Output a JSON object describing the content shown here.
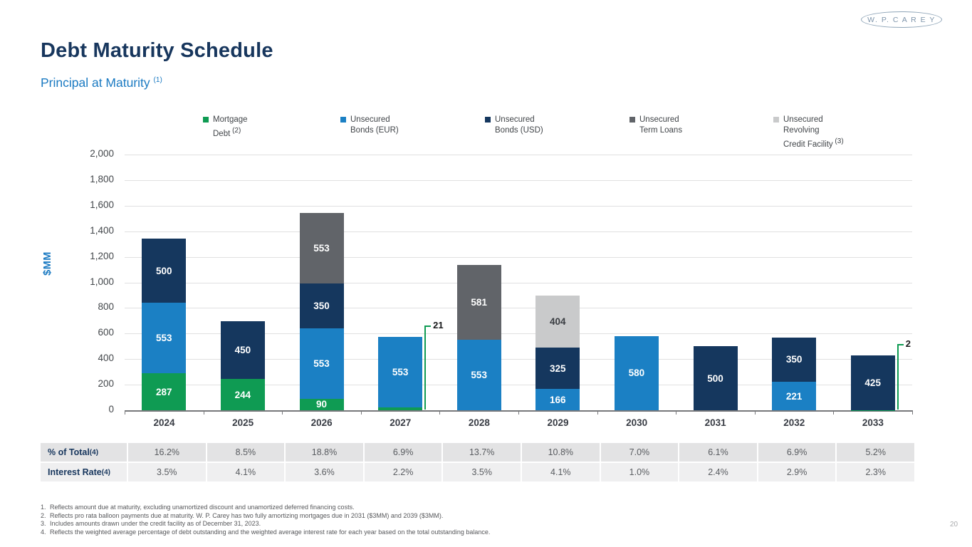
{
  "brand": {
    "logo_text": "W. P. C A R E Y"
  },
  "header": {
    "title": "Debt Maturity Schedule",
    "subtitle": "Principal at Maturity",
    "subtitle_note": "(1)"
  },
  "chart_data": {
    "type": "bar",
    "stacked": true,
    "title": "Principal at Maturity",
    "ylabel": "$MM",
    "ylim": [
      0,
      2000
    ],
    "ytick_interval": 200,
    "grid": true,
    "legend_position": "top",
    "categories": [
      "2024",
      "2025",
      "2026",
      "2027",
      "2028",
      "2029",
      "2030",
      "2031",
      "2032",
      "2033"
    ],
    "series": [
      {
        "key": "mortgage",
        "name": "Mortgage Debt",
        "note": "(2)",
        "legend_lines": [
          "Mortgage",
          "Debt"
        ],
        "color": "#0f9b53",
        "values": [
          287,
          244,
          90,
          21,
          0,
          0,
          0,
          0,
          0,
          2
        ]
      },
      {
        "key": "eur-bonds",
        "name": "Unsecured Bonds (EUR)",
        "note": "",
        "legend_lines": [
          "Unsecured",
          "Bonds (EUR)"
        ],
        "color": "#1b80c4",
        "values": [
          553,
          0,
          553,
          553,
          553,
          166,
          580,
          0,
          221,
          0
        ]
      },
      {
        "key": "usd-bonds",
        "name": "Unsecured Bonds (USD)",
        "note": "",
        "legend_lines": [
          "Unsecured",
          "Bonds (USD)"
        ],
        "color": "#15375e",
        "values": [
          500,
          450,
          350,
          0,
          0,
          325,
          0,
          500,
          350,
          425
        ]
      },
      {
        "key": "term-loans",
        "name": "Unsecured Term Loans",
        "note": "",
        "legend_lines": [
          "Unsecured",
          "Term Loans"
        ],
        "color": "#616469",
        "values": [
          0,
          0,
          553,
          0,
          581,
          0,
          0,
          0,
          0,
          0
        ]
      },
      {
        "key": "revolver",
        "name": "Unsecured Revolving Credit Facility",
        "note": "(3)",
        "legend_lines": [
          "Unsecured",
          "Revolving",
          "Credit Facility"
        ],
        "color": "#c9cacb",
        "values": [
          0,
          0,
          0,
          0,
          0,
          404,
          0,
          0,
          0,
          0
        ]
      }
    ],
    "callouts": [
      {
        "category": "2027",
        "series": "mortgage",
        "label": "21"
      },
      {
        "category": "2033",
        "series": "mortgage",
        "label": "2"
      }
    ]
  },
  "table": {
    "rows": [
      {
        "label": "% of Total",
        "note": "(4)",
        "values": [
          "16.2%",
          "8.5%",
          "18.8%",
          "6.9%",
          "13.7%",
          "10.8%",
          "7.0%",
          "6.1%",
          "6.9%",
          "5.2%"
        ]
      },
      {
        "label": "Interest Rate",
        "note": "(4)",
        "values": [
          "3.5%",
          "4.1%",
          "3.6%",
          "2.2%",
          "3.5%",
          "4.1%",
          "1.0%",
          "2.4%",
          "2.9%",
          "2.3%"
        ]
      }
    ]
  },
  "footnotes": [
    {
      "num": "1.",
      "text": "Reflects amount due at maturity, excluding unamortized discount and unamortized deferred financing costs."
    },
    {
      "num": "2.",
      "text": "Reflects pro rata balloon payments due at maturity. W. P. Carey has two fully amortizing mortgages due in 2031 ($3MM) and 2039 ($3MM)."
    },
    {
      "num": "3.",
      "text": "Includes amounts drawn under the credit facility as of December 31, 2023."
    },
    {
      "num": "4.",
      "text": "Reflects the weighted average percentage of debt outstanding and the weighted average interest rate for each year based on the total outstanding balance."
    }
  ],
  "page_number": "20"
}
